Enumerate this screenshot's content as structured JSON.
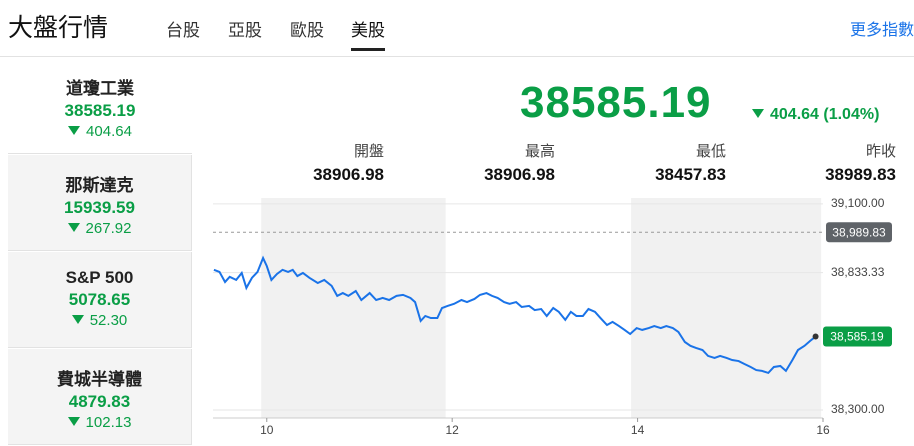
{
  "header": {
    "title": "大盤行情",
    "tabs": [
      "台股",
      "亞股",
      "歐股",
      "美股"
    ],
    "more": "更多指數"
  },
  "sidebar": {
    "items": [
      {
        "name": "道瓊工業",
        "value": "38585.19",
        "change": "404.64"
      },
      {
        "name": "那斯達克",
        "value": "15939.59",
        "change": "267.92"
      },
      {
        "name": "S&P 500",
        "value": "5078.65",
        "change": "52.30"
      },
      {
        "name": "費城半導體",
        "value": "4879.83",
        "change": "102.13"
      }
    ]
  },
  "quote": {
    "price": "38585.19",
    "change": "404.64 (1.04%)",
    "stats": [
      {
        "label": "開盤",
        "value": "38906.98"
      },
      {
        "label": "最高",
        "value": "38906.98"
      },
      {
        "label": "最低",
        "value": "38457.83"
      },
      {
        "label": "昨收",
        "value": "38989.83"
      }
    ]
  },
  "chart_data": {
    "type": "line",
    "color": "#1a73e8",
    "x": [
      9.43,
      9.49,
      9.55,
      9.6,
      9.67,
      9.73,
      9.78,
      9.84,
      9.9,
      9.96,
      10,
      10.05,
      10.11,
      10.17,
      10.23,
      10.28,
      10.33,
      10.39,
      10.46,
      10.55,
      10.62,
      10.7,
      10.76,
      10.82,
      10.88,
      10.96,
      11.02,
      11.11,
      11.18,
      11.25,
      11.32,
      11.4,
      11.47,
      11.55,
      11.6,
      11.66,
      11.71,
      11.77,
      11.84,
      11.89,
      11.95,
      12.02,
      12.1,
      12.16,
      12.24,
      12.3,
      12.37,
      12.43,
      12.49,
      12.56,
      12.62,
      12.69,
      12.75,
      12.83,
      12.89,
      12.96,
      13.02,
      13.09,
      13.15,
      13.22,
      13.28,
      13.34,
      13.41,
      13.47,
      13.54,
      13.6,
      13.67,
      13.73,
      13.8,
      13.86,
      13.92,
      13.99,
      14.05,
      14.12,
      14.18,
      14.25,
      14.31,
      14.38,
      14.44,
      14.51,
      14.57,
      14.63,
      14.7,
      14.76,
      14.83,
      14.89,
      14.96,
      15.02,
      15.09,
      15.15,
      15.22,
      15.28,
      15.34,
      15.41,
      15.47,
      15.54,
      15.6,
      15.67,
      15.73,
      15.8,
      15.86,
      15.92
    ],
    "values": [
      38844,
      38836,
      38797,
      38817,
      38805,
      38832,
      38774,
      38813,
      38836,
      38890,
      38859,
      38805,
      38828,
      38844,
      38836,
      38844,
      38820,
      38832,
      38813,
      38793,
      38805,
      38782,
      38743,
      38754,
      38743,
      38762,
      38727,
      38754,
      38727,
      38735,
      38727,
      38743,
      38747,
      38735,
      38719,
      38646,
      38665,
      38657,
      38657,
      38696,
      38704,
      38712,
      38727,
      38719,
      38731,
      38747,
      38754,
      38743,
      38735,
      38719,
      38712,
      38719,
      38700,
      38704,
      38688,
      38692,
      38665,
      38696,
      38681,
      38650,
      38681,
      38665,
      38665,
      38692,
      38681,
      38657,
      38630,
      38642,
      38626,
      38611,
      38595,
      38618,
      38611,
      38618,
      38626,
      38618,
      38626,
      38618,
      38603,
      38564,
      38549,
      38541,
      38533,
      38510,
      38502,
      38510,
      38502,
      38494,
      38490,
      38479,
      38467,
      38455,
      38452,
      38444,
      38467,
      38471,
      38452,
      38494,
      38533,
      38549,
      38568,
      38585.19
    ],
    "xlim": [
      9.42,
      16
    ],
    "xticks": [
      10,
      12,
      14,
      16
    ],
    "ylim": [
      38269,
      39123
    ],
    "yticks": [
      {
        "value": 39100,
        "label": "39,100.00"
      },
      {
        "value": 38833.33,
        "label": "38,833.33"
      },
      {
        "value": 38300,
        "label": "38,300.00"
      }
    ],
    "shaded_ranges": [
      [
        9.94,
        11.93
      ],
      [
        13.93,
        15.98
      ]
    ],
    "reference_line": {
      "value": 38989.83,
      "label": "38,989.83",
      "color": "#5f6368"
    },
    "last_label": {
      "value": 38585.19,
      "label": "38,585.19",
      "color": "#0a9e46"
    }
  }
}
